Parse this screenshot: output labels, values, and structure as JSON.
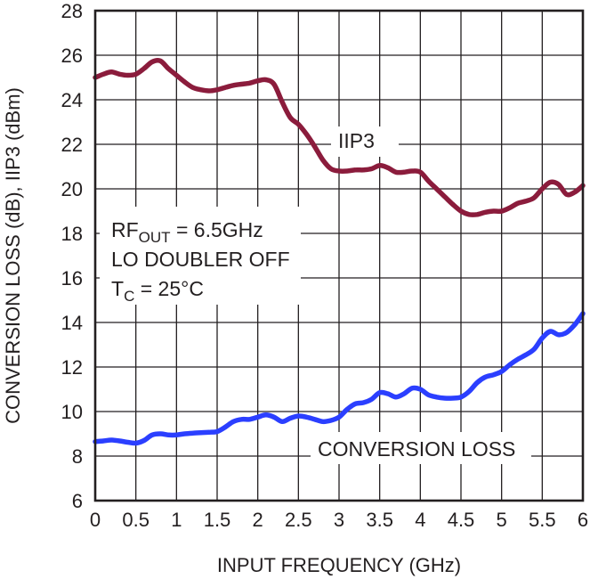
{
  "chart_data": {
    "type": "line",
    "xlabel": "INPUT FREQUENCY (GHz)",
    "ylabel": "CONVERSION LOSS (dB), IIP3 (dBm)",
    "xlim": [
      0,
      6
    ],
    "ylim": [
      6,
      28
    ],
    "x_ticks": [
      "0",
      "0.5",
      "1",
      "1.5",
      "2",
      "2.5",
      "3",
      "3.5",
      "4",
      "4.5",
      "5",
      "5.5",
      "6"
    ],
    "y_ticks": [
      "6",
      "8",
      "10",
      "12",
      "14",
      "16",
      "18",
      "20",
      "22",
      "24",
      "26",
      "28"
    ],
    "grid": true,
    "series": [
      {
        "name": "IIP3",
        "color": "#8b1c3c",
        "x": [
          0,
          0.1,
          0.2,
          0.3,
          0.4,
          0.5,
          0.6,
          0.7,
          0.8,
          0.9,
          1.0,
          1.1,
          1.2,
          1.3,
          1.4,
          1.5,
          1.6,
          1.7,
          1.8,
          1.9,
          2.0,
          2.1,
          2.2,
          2.3,
          2.4,
          2.5,
          2.6,
          2.7,
          2.8,
          2.9,
          3.0,
          3.1,
          3.2,
          3.3,
          3.4,
          3.5,
          3.6,
          3.7,
          3.8,
          3.9,
          4.0,
          4.1,
          4.2,
          4.3,
          4.4,
          4.5,
          4.6,
          4.7,
          4.8,
          4.9,
          5.0,
          5.1,
          5.2,
          5.3,
          5.4,
          5.5,
          5.6,
          5.7,
          5.8,
          5.9,
          6.0
        ],
        "values": [
          25.0,
          25.15,
          25.25,
          25.15,
          25.1,
          25.15,
          25.4,
          25.7,
          25.75,
          25.4,
          25.1,
          24.8,
          24.55,
          24.45,
          24.4,
          24.45,
          24.55,
          24.65,
          24.7,
          24.75,
          24.85,
          24.9,
          24.7,
          23.9,
          23.2,
          22.9,
          22.45,
          21.9,
          21.3,
          20.9,
          20.8,
          20.8,
          20.85,
          20.85,
          20.9,
          21.05,
          20.95,
          20.75,
          20.75,
          20.8,
          20.75,
          20.35,
          20.0,
          19.65,
          19.3,
          19.0,
          18.85,
          18.85,
          18.95,
          19.0,
          19.0,
          19.15,
          19.35,
          19.45,
          19.6,
          20.0,
          20.3,
          20.2,
          19.75,
          19.85,
          20.15
        ]
      },
      {
        "name": "CONVERSION LOSS",
        "color": "#2b3fff",
        "x": [
          0,
          0.1,
          0.2,
          0.3,
          0.4,
          0.5,
          0.6,
          0.7,
          0.8,
          0.9,
          1.0,
          1.1,
          1.2,
          1.3,
          1.4,
          1.5,
          1.6,
          1.7,
          1.8,
          1.9,
          2.0,
          2.1,
          2.2,
          2.3,
          2.4,
          2.5,
          2.6,
          2.7,
          2.8,
          2.9,
          3.0,
          3.1,
          3.2,
          3.3,
          3.4,
          3.5,
          3.6,
          3.7,
          3.8,
          3.9,
          4.0,
          4.1,
          4.2,
          4.3,
          4.4,
          4.5,
          4.6,
          4.7,
          4.8,
          4.9,
          5.0,
          5.1,
          5.2,
          5.3,
          5.4,
          5.5,
          5.6,
          5.7,
          5.8,
          5.9,
          6.0
        ],
        "values": [
          8.65,
          8.68,
          8.72,
          8.68,
          8.62,
          8.58,
          8.7,
          8.95,
          9.0,
          8.95,
          8.95,
          9.0,
          9.03,
          9.05,
          9.07,
          9.1,
          9.3,
          9.55,
          9.65,
          9.65,
          9.75,
          9.85,
          9.75,
          9.55,
          9.7,
          9.8,
          9.75,
          9.65,
          9.55,
          9.6,
          9.75,
          10.1,
          10.35,
          10.4,
          10.55,
          10.85,
          10.8,
          10.65,
          10.8,
          11.05,
          11.0,
          10.75,
          10.65,
          10.6,
          10.6,
          10.65,
          10.9,
          11.3,
          11.55,
          11.65,
          11.8,
          12.1,
          12.35,
          12.55,
          12.8,
          13.3,
          13.6,
          13.45,
          13.55,
          13.9,
          14.4
        ]
      }
    ],
    "annotations": {
      "series_label_iip3": "IIP3",
      "series_label_cl": "CONVERSION LOSS",
      "rf_prefix": "RF",
      "rf_sub": "OUT",
      "rf_suffix": " = 6.5GHz",
      "lo_line": "LO DOUBLER OFF",
      "tc_prefix": "T",
      "tc_sub": "C",
      "tc_suffix": " = 25°C"
    }
  }
}
